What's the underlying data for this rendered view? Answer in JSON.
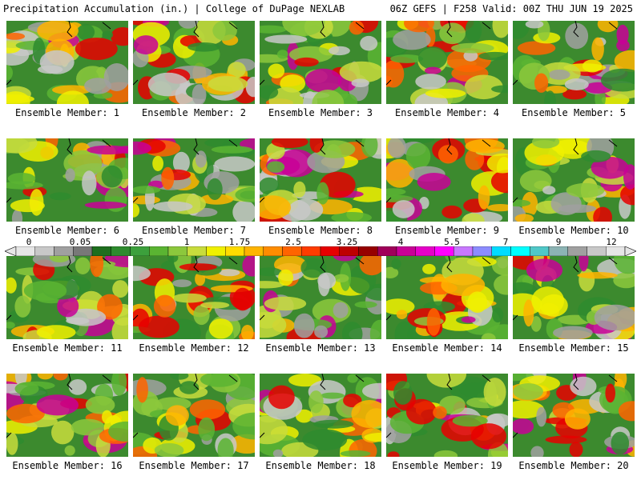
{
  "header": {
    "left": "Precipitation Accumulation (in.) | College of DuPage NEXLAB",
    "right": "06Z GEFS | F258 Valid: 00Z THU JUN 19 2025"
  },
  "panel_label_prefix": "Ensemble Member: ",
  "members": [
    {
      "id": "1",
      "label": "Ensemble Member: 1"
    },
    {
      "id": "2",
      "label": "Ensemble Member: 2"
    },
    {
      "id": "3",
      "label": "Ensemble Member: 3"
    },
    {
      "id": "4",
      "label": "Ensemble Member: 4"
    },
    {
      "id": "5",
      "label": "Ensemble Member: 5"
    },
    {
      "id": "6",
      "label": "Ensemble Member: 6"
    },
    {
      "id": "7",
      "label": "Ensemble Member: 7"
    },
    {
      "id": "8",
      "label": "Ensemble Member: 8"
    },
    {
      "id": "9",
      "label": "Ensemble Member: 9"
    },
    {
      "id": "10",
      "label": "Ensemble Member: 10"
    },
    {
      "id": "11",
      "label": "Ensemble Member: 11"
    },
    {
      "id": "12",
      "label": "Ensemble Member: 12"
    },
    {
      "id": "13",
      "label": "Ensemble Member: 13"
    },
    {
      "id": "14",
      "label": "Ensemble Member: 14"
    },
    {
      "id": "15",
      "label": "Ensemble Member: 15"
    },
    {
      "id": "16",
      "label": "Ensemble Member: 16"
    },
    {
      "id": "17",
      "label": "Ensemble Member: 17"
    },
    {
      "id": "18",
      "label": "Ensemble Member: 18"
    },
    {
      "id": "19",
      "label": "Ensemble Member: 19"
    },
    {
      "id": "20",
      "label": "Ensemble Member: 20"
    }
  ],
  "colorbar": {
    "tick_labels": [
      "0",
      "0.05",
      "0.25",
      "1",
      "1.75",
      "2.5",
      "3.25",
      "4",
      "5.5",
      "7",
      "9",
      "12"
    ],
    "colors": [
      "#e6e6e6",
      "#c8c8c8",
      "#a0a0a0",
      "#787878",
      "#1e6e1e",
      "#2e8b2e",
      "#3ca03c",
      "#5ab432",
      "#8cc83c",
      "#c8dc3c",
      "#f0f000",
      "#ffdc00",
      "#ffb400",
      "#ff8c00",
      "#ff6400",
      "#ff3c00",
      "#e60000",
      "#be0000",
      "#960000",
      "#a0005a",
      "#c80096",
      "#e600c8",
      "#ff00ff",
      "#c878ff",
      "#8c8cff",
      "#00dcff",
      "#00ffff",
      "#50c8c8",
      "#8cb4b4",
      "#a0a0a0",
      "#c8c8c8",
      "#e6e6e6"
    ]
  }
}
